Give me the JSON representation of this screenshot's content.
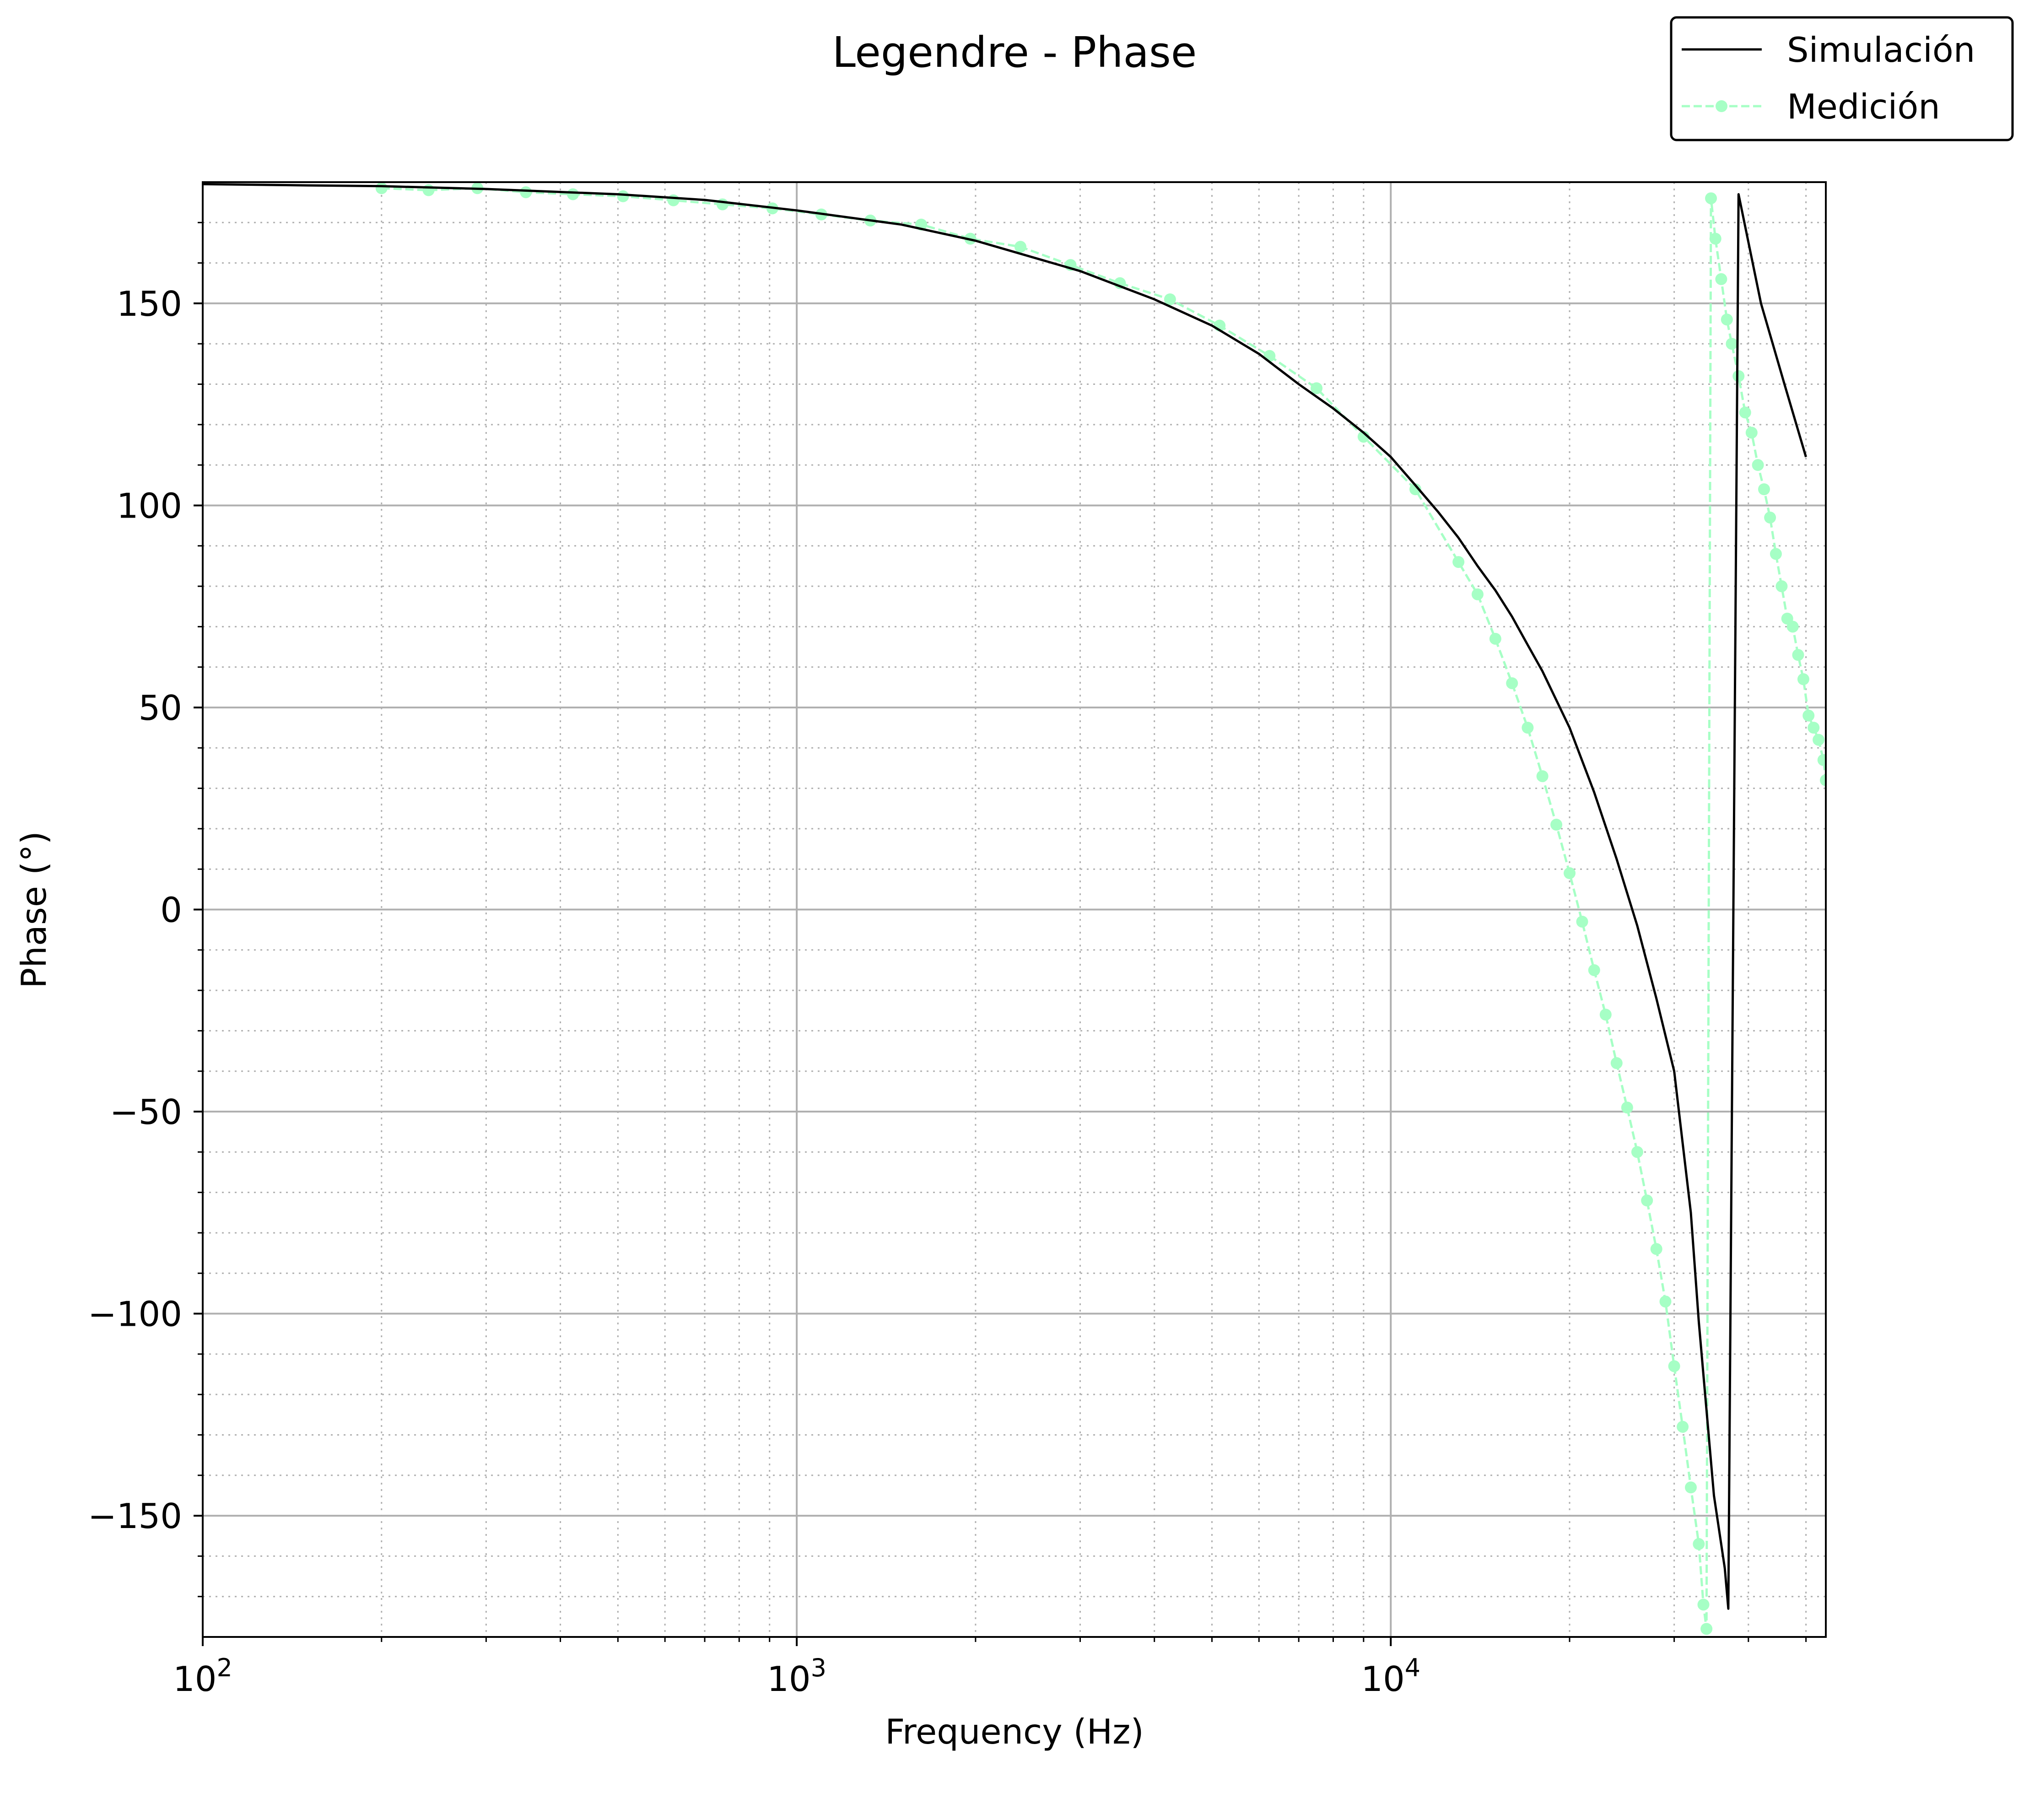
{
  "chart_data": {
    "type": "line",
    "title": "Legendre - Phase",
    "xlabel": "Frequency (Hz)",
    "ylabel": "Phase (°)",
    "xscale": "log",
    "xlim": [
      100,
      54000
    ],
    "ylim": [
      -180,
      180
    ],
    "grid": true,
    "legend_position": "top-right, outside the plot area",
    "x_tick_labels": [
      {
        "base": "10",
        "exp": "2",
        "value": 100
      },
      {
        "base": "10",
        "exp": "3",
        "value": 1000
      },
      {
        "base": "10",
        "exp": "4",
        "value": 10000
      }
    ],
    "y_tick_labels": [
      {
        "label": "150",
        "value": 150
      },
      {
        "label": "100",
        "value": 100
      },
      {
        "label": "50",
        "value": 50
      },
      {
        "label": "0",
        "value": 0
      },
      {
        "label": "−50",
        "value": -50
      },
      {
        "label": "−100",
        "value": -100
      },
      {
        "label": "−150",
        "value": -150
      }
    ],
    "series": [
      {
        "name": "Simulación",
        "color": "#000000",
        "style": "solid",
        "marker": "none",
        "x": [
          100,
          150,
          200,
          300,
          500,
          700,
          1000,
          1500,
          2000,
          3000,
          4000,
          5000,
          6000,
          7000,
          8000,
          9000,
          10000,
          11000,
          12000,
          13000,
          14000,
          15000,
          16000,
          17000,
          18000,
          20000,
          22000,
          24000,
          26000,
          28000,
          30000,
          32000,
          33000,
          35000,
          36500,
          37000,
          38500,
          42000,
          46000,
          50000
        ],
        "y": [
          179.5,
          179.2,
          179,
          178.3,
          177,
          175.6,
          173,
          169.5,
          165.5,
          158,
          151,
          144.5,
          137.5,
          130,
          124,
          118,
          112,
          105,
          98.5,
          92,
          85,
          79,
          72.5,
          65.5,
          59,
          45,
          29,
          12.5,
          -4,
          -22,
          -40,
          -75,
          -102,
          -145,
          -163,
          -173,
          177,
          150,
          130,
          112
        ]
      },
      {
        "name": "Medición",
        "color": "#a6ffc5",
        "style": "dashed",
        "marker": "dot",
        "x": [
          200,
          240,
          290,
          350,
          420,
          510,
          620,
          750,
          910,
          1100,
          1330,
          1620,
          1960,
          2380,
          2890,
          3500,
          4250,
          5150,
          6250,
          7500,
          9000,
          11000,
          13000,
          14000,
          15000,
          16000,
          17000,
          18000,
          19000,
          20000,
          21000,
          22000,
          23000,
          24000,
          25000,
          26000,
          27000,
          28000,
          29000,
          30000,
          31000,
          32000,
          33000,
          33600,
          34000,
          34600,
          35200,
          36000,
          36800,
          37500,
          38500,
          39500,
          40500,
          41500,
          42500,
          43500,
          44500,
          45500,
          46500,
          47500,
          48500,
          49500,
          50500,
          51500,
          52500,
          53500,
          54000
        ],
        "y": [
          178.5,
          178,
          178.5,
          177.5,
          177,
          176.5,
          175.5,
          174.5,
          173.5,
          172,
          170.5,
          169.5,
          166,
          164,
          159.5,
          155,
          151,
          144.5,
          137,
          129,
          117,
          104,
          86,
          78,
          67,
          56,
          45,
          33,
          21,
          9,
          -3,
          -15,
          -26,
          -38,
          -49,
          -60,
          -72,
          -84,
          -97,
          -113,
          -128,
          -143,
          -157,
          -172,
          -178,
          176,
          166,
          156,
          146,
          140,
          132,
          123,
          118,
          110,
          104,
          97,
          88,
          80,
          72,
          70,
          63,
          57,
          48,
          45,
          42,
          37,
          32
        ]
      }
    ]
  }
}
